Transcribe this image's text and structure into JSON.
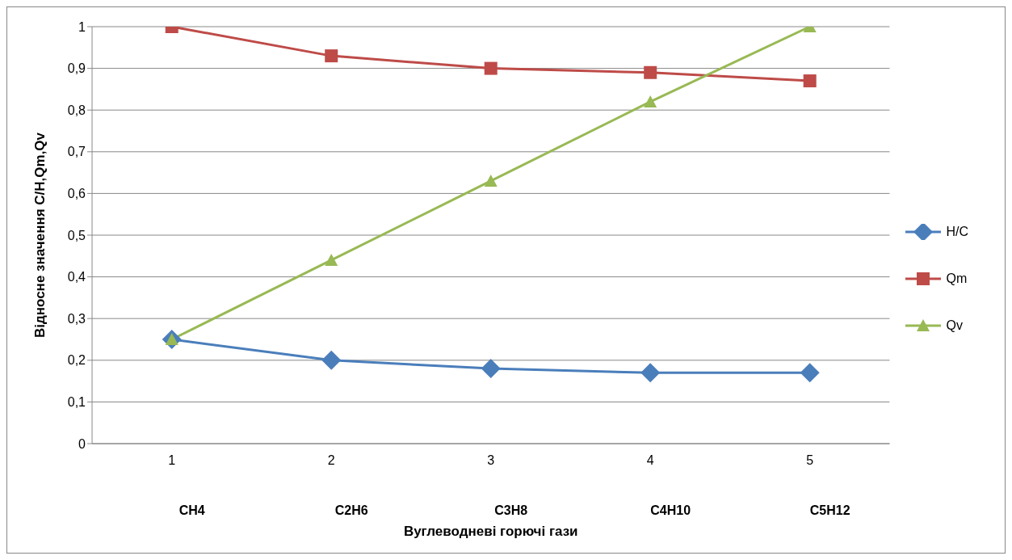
{
  "chart_data": {
    "type": "line",
    "xlabel": "Вуглеводневі горючі гази",
    "ylabel": "Відносне значення C/H,Qm,Qv",
    "categories": [
      "1",
      "2",
      "3",
      "4",
      "5"
    ],
    "series": [
      {
        "name": "H/C",
        "color": "#4a7ebb",
        "marker": "diamond",
        "values": [
          0.25,
          0.2,
          0.18,
          0.17,
          0.17
        ]
      },
      {
        "name": "Qm",
        "color": "#be4b48",
        "marker": "square",
        "values": [
          1,
          0.93,
          0.9,
          0.89,
          0.87
        ]
      },
      {
        "name": "Qv",
        "color": "#98b954",
        "marker": "triangle",
        "values": [
          0.25,
          0.44,
          0.63,
          0.82,
          1
        ]
      }
    ],
    "ylim": [
      0,
      1
    ],
    "yticks": [
      {
        "value": 0,
        "label": "0"
      },
      {
        "value": 0.1,
        "label": "0,1"
      },
      {
        "value": 0.2,
        "label": "0,2"
      },
      {
        "value": 0.3,
        "label": "0,3"
      },
      {
        "value": 0.4,
        "label": "0,4"
      },
      {
        "value": 0.5,
        "label": "0,5"
      },
      {
        "value": 0.6,
        "label": "0,6"
      },
      {
        "value": 0.7,
        "label": "0,7"
      },
      {
        "value": 0.8,
        "label": "0,8"
      },
      {
        "value": 0.9,
        "label": "0,9"
      },
      {
        "value": 1,
        "label": "1"
      }
    ],
    "annotations": [
      "CH4",
      "C2H6",
      "C3H8",
      "C4H10",
      "C5H12"
    ],
    "grid": "y",
    "legend": "right",
    "line_style": "solid"
  }
}
